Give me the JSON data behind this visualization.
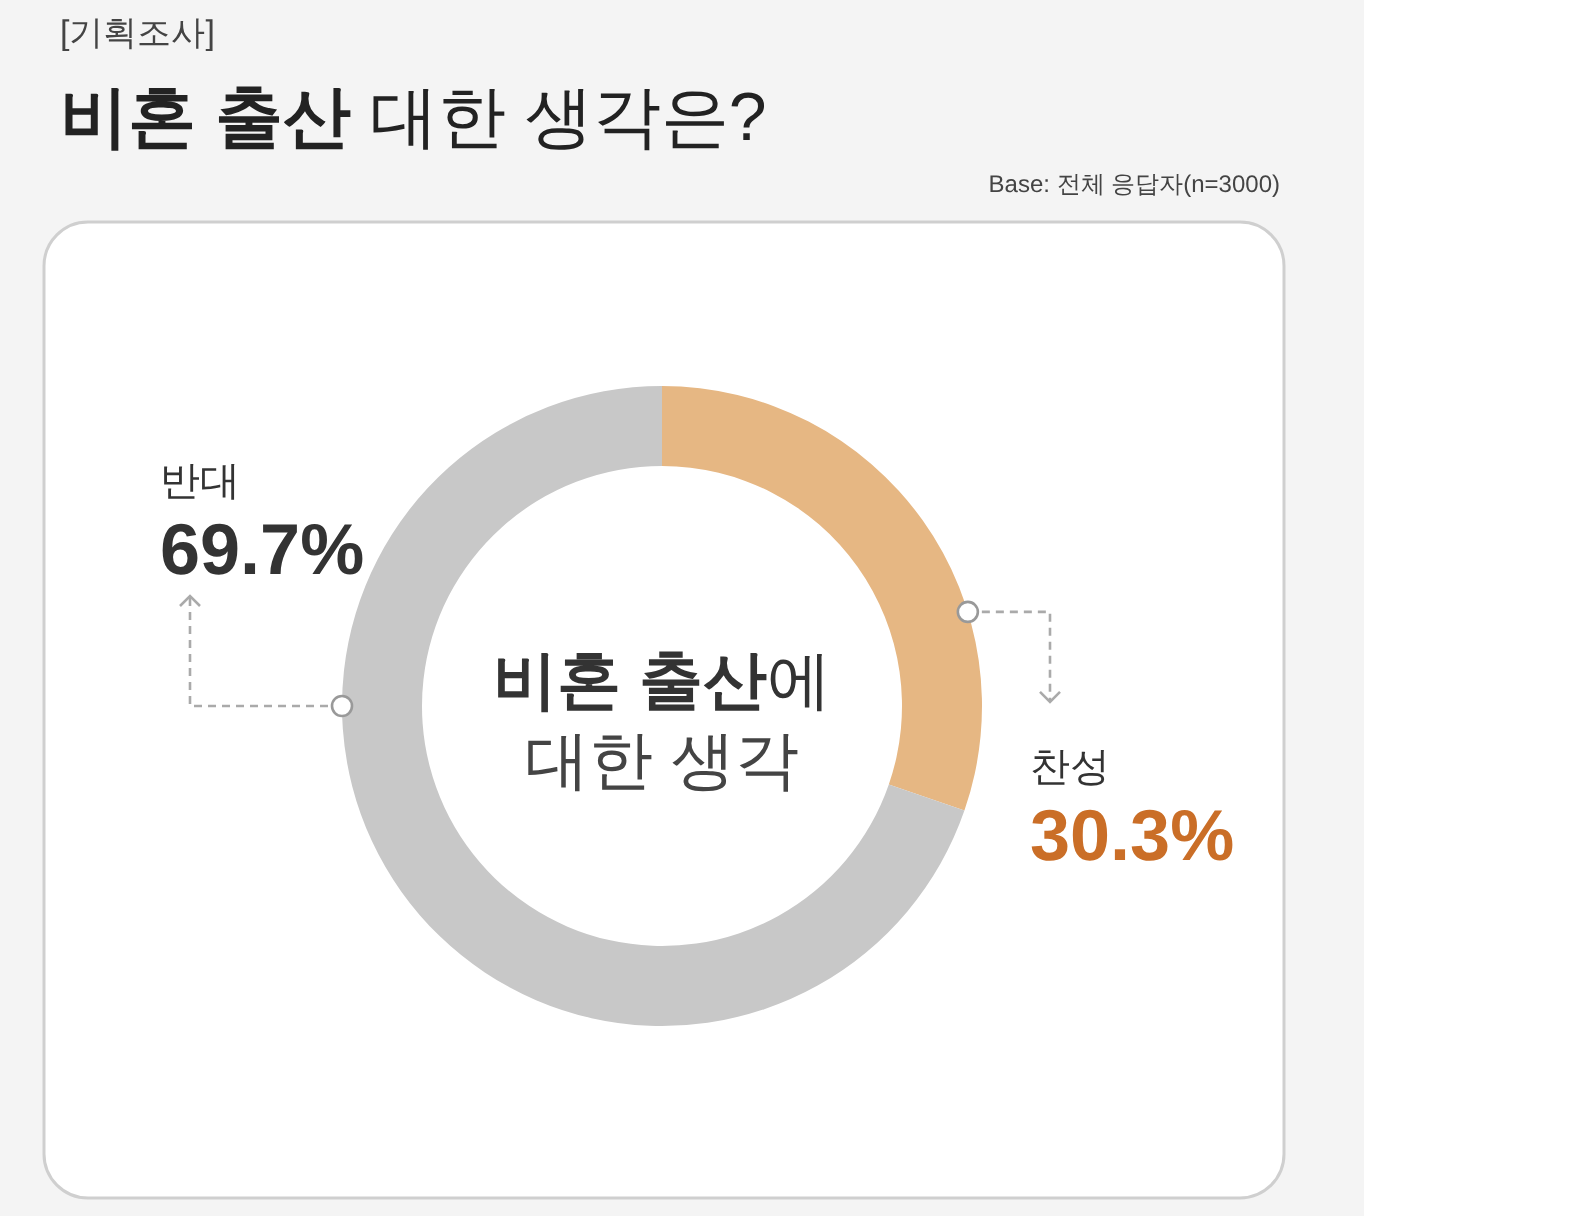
{
  "chart_data": {
    "type": "donut",
    "title": "비혼 출산 대한 생각은?",
    "subtitle": "[기획조사]",
    "annotations": [
      "Base: 전체 응답자(n=3000)",
      "비혼 출산에 대한 생각"
    ],
    "categories": [
      "찬성",
      "반대"
    ],
    "values": [
      30.3,
      69.7
    ],
    "colors": [
      "#e6b783",
      "#c8c8c8"
    ],
    "value_labels": [
      "30.3%",
      "69.7%"
    ]
  }
}
